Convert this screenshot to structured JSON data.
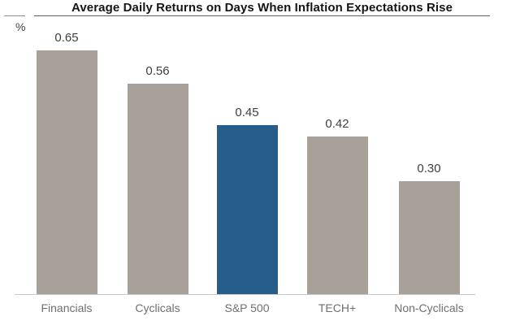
{
  "header": {
    "title": "Average Daily Returns on Days When Inflation Expectations Rise",
    "unit_label": "%"
  },
  "chart_data": {
    "type": "bar",
    "title": "Average Daily Returns on Days When Inflation Expectations Rise",
    "ylabel": "%",
    "xlabel": "",
    "categories": [
      "Financials",
      "Cyclicals",
      "S&P 500",
      "TECH+",
      "Non-Cyclicals"
    ],
    "values": [
      0.65,
      0.56,
      0.45,
      0.42,
      0.3
    ],
    "value_labels": [
      "0.65",
      "0.56",
      "0.45",
      "0.42",
      "0.30"
    ],
    "ylim": [
      0,
      0.78
    ],
    "grid": false,
    "legend": "none",
    "highlight_category": "S&P 500",
    "bar_colors": [
      "#a8a19a",
      "#a8a19a",
      "#255d8b",
      "#a8a19a",
      "#a8a19a"
    ],
    "colors": {
      "default_bar": "#a8a19a",
      "highlight_bar": "#255d8b",
      "axis_line": "#c9c9c9",
      "title_text": "#151515",
      "value_text": "#3f3f3f",
      "category_text": "#6f6f6f"
    }
  }
}
